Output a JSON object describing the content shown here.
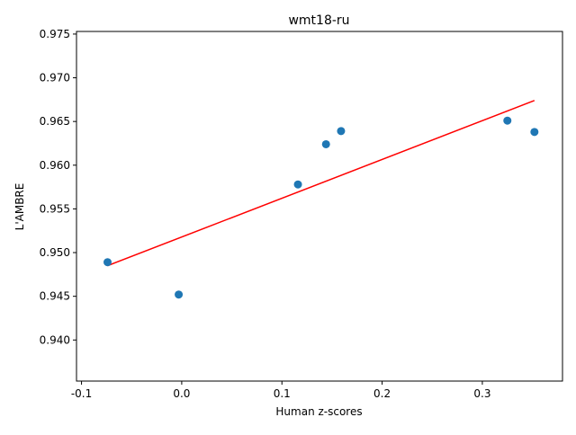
{
  "chart_data": {
    "type": "scatter",
    "title": "wmt18-ru",
    "xlabel": "Human z-scores",
    "ylabel": "L'AMBRE",
    "xlim": [
      -0.105,
      0.38
    ],
    "ylim": [
      0.9353,
      0.9753
    ],
    "xticks": [
      -0.1,
      0.0,
      0.1,
      0.2,
      0.3
    ],
    "xtick_labels": [
      "-0.1",
      "0.0",
      "0.1",
      "0.2",
      "0.3"
    ],
    "yticks": [
      0.94,
      0.945,
      0.95,
      0.955,
      0.96,
      0.965,
      0.97,
      0.975
    ],
    "ytick_labels": [
      "0.940",
      "0.945",
      "0.950",
      "0.955",
      "0.960",
      "0.965",
      "0.970",
      "0.975"
    ],
    "grid": false,
    "legend": "none",
    "points": {
      "x": [
        -0.074,
        -0.003,
        0.116,
        0.144,
        0.159,
        0.325,
        0.352
      ],
      "y": [
        0.9489,
        0.9452,
        0.9578,
        0.9624,
        0.9639,
        0.9651,
        0.9638
      ],
      "color": "#1f77b4"
    },
    "fit_line": {
      "x": [
        -0.074,
        0.352
      ],
      "y": [
        0.9485,
        0.9674
      ],
      "color": "#ff0000"
    }
  }
}
